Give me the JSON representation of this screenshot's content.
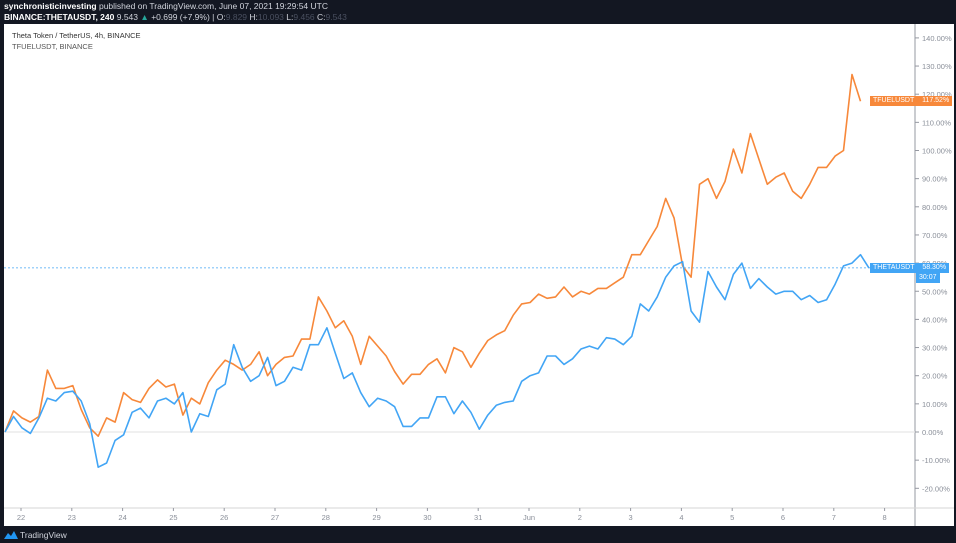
{
  "header": {
    "publisher": "synchronisticinvesting",
    "published_text": "published on TradingView.com, June 07, 2021 19:29:54 UTC",
    "symbol": "BINANCE:THETAUSDT, 240",
    "last": "9.543",
    "change": "+0.699 (+7.9%)",
    "o_label": "O:",
    "o_val": "9.829",
    "h_label": "H:",
    "h_val": "10.093",
    "l_label": "L:",
    "l_val": "9.456",
    "c_label": "C:",
    "c_val": "9.543"
  },
  "legend": {
    "main": "Theta Token / TetherUS, 4h, BINANCE",
    "compare": "TFUELUSDT, BINANCE"
  },
  "badges": {
    "tfuel_name": "TFUELUSDT",
    "tfuel_value": "117.52%",
    "theta_name": "THETAUSDT",
    "theta_value": "58.30%",
    "theta_countdown": "30:07"
  },
  "footer": {
    "brand": "TradingView"
  },
  "colors": {
    "theta": "#42a5f5",
    "tfuel": "#f7883a",
    "background": "#131722",
    "plot_bg": "#ffffff"
  },
  "chart_data": {
    "type": "line",
    "title": "Theta Token / TetherUS, 4h, BINANCE vs TFUELUSDT, BINANCE",
    "xlabel": "",
    "ylabel": "% change",
    "x_ticks": [
      "22",
      "23",
      "24",
      "25",
      "26",
      "27",
      "28",
      "29",
      "30",
      "31",
      "Jun",
      "2",
      "3",
      "4",
      "5",
      "6",
      "7",
      "8"
    ],
    "y_ticks": [
      "140.00%",
      "130.00%",
      "120.00%",
      "110.00%",
      "100.00%",
      "90.00%",
      "80.00%",
      "70.00%",
      "60.00%",
      "50.00%",
      "40.00%",
      "30.00%",
      "20.00%",
      "10.00%",
      "0.00%",
      "-10.00%",
      "-20.00%"
    ],
    "ylim": [
      -24,
      146
    ],
    "grid": false,
    "legend_position": "top-left",
    "interval": "4h",
    "x_start": "May 21 20:00",
    "series": [
      {
        "name": "THETAUSDT",
        "color": "#42a5f5",
        "last_value": 58.3,
        "values": [
          0,
          5.5,
          1.5,
          -0.5,
          5,
          12,
          11,
          14,
          14.5,
          11,
          3,
          -12.5,
          -11,
          -3,
          -1,
          7,
          8.5,
          5,
          11,
          12,
          10,
          14,
          0,
          6.5,
          5.5,
          15,
          17,
          31,
          23,
          18,
          20,
          26.5,
          16.5,
          18,
          23,
          22,
          31,
          31,
          37,
          28,
          19,
          21,
          14,
          9,
          12,
          11,
          9,
          2,
          2,
          5,
          5,
          12.5,
          12.5,
          6.5,
          11,
          7,
          1,
          6,
          9.5,
          10.5,
          11,
          18,
          20,
          21,
          27,
          27,
          24,
          26,
          29.5,
          30.5,
          29.5,
          33.5,
          33,
          31,
          34,
          45.5,
          43,
          48,
          55,
          59,
          60.5,
          43,
          39,
          57,
          51.5,
          47,
          56,
          60,
          51,
          54.5,
          51.5,
          49,
          50,
          50,
          47,
          48.5,
          46,
          47,
          52.5,
          59,
          60,
          63,
          58.3
        ]
      },
      {
        "name": "TFUELUSDT",
        "color": "#f7883a",
        "last_value": 117.52,
        "values": [
          0,
          7.5,
          5,
          3.5,
          5.5,
          22,
          15.5,
          15.5,
          16.5,
          8,
          1.5,
          -1.5,
          5,
          3.5,
          14,
          11.5,
          10.5,
          15.5,
          18.5,
          16,
          17,
          6,
          12,
          10,
          17.5,
          22,
          25.5,
          24,
          22,
          24,
          28.5,
          20,
          24,
          26.5,
          27,
          33,
          33,
          48,
          43,
          37,
          39.5,
          34,
          24,
          34,
          30.5,
          27,
          21.5,
          17,
          20.5,
          20.5,
          24,
          26,
          21,
          30,
          28.5,
          23,
          28,
          32.5,
          34.5,
          36,
          41.5,
          45.5,
          46,
          49,
          47.5,
          48,
          51.5,
          48,
          50,
          49,
          51,
          51,
          53,
          55,
          63,
          63,
          68,
          73,
          83,
          76,
          59,
          55,
          88,
          90,
          83,
          89,
          100.5,
          92,
          106,
          97,
          88,
          90.5,
          92,
          85.5,
          83,
          88,
          94,
          94,
          98,
          100,
          127,
          117.52
        ]
      }
    ]
  }
}
